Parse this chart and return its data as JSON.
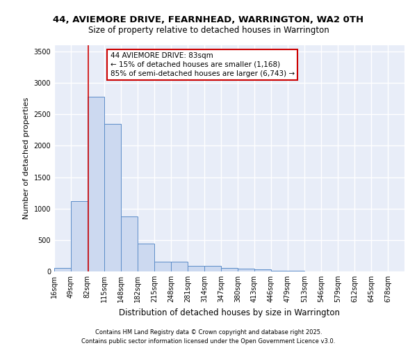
{
  "title1": "44, AVIEMORE DRIVE, FEARNHEAD, WARRINGTON, WA2 0TH",
  "title2": "Size of property relative to detached houses in Warrington",
  "xlabel": "Distribution of detached houses by size in Warrington",
  "ylabel": "Number of detached properties",
  "bar_heights": [
    50,
    1120,
    2780,
    2350,
    880,
    440,
    160,
    160,
    90,
    90,
    55,
    40,
    30,
    15,
    10,
    5,
    5,
    3,
    3,
    2,
    2
  ],
  "bin_edges": [
    16,
    49,
    82,
    115,
    148,
    182,
    215,
    248,
    281,
    314,
    347,
    380,
    413,
    446,
    479,
    513,
    546,
    579,
    612,
    645,
    678,
    711
  ],
  "tick_labels": [
    "16sqm",
    "49sqm",
    "82sqm",
    "115sqm",
    "148sqm",
    "182sqm",
    "215sqm",
    "248sqm",
    "281sqm",
    "314sqm",
    "347sqm",
    "380sqm",
    "413sqm",
    "446sqm",
    "479sqm",
    "513sqm",
    "546sqm",
    "579sqm",
    "612sqm",
    "645sqm",
    "678sqm"
  ],
  "bar_facecolor": "#ccd9f0",
  "bar_edgecolor": "#5b8cc8",
  "bg_color": "#e8edf8",
  "grid_color": "#ffffff",
  "redline_x": 83,
  "annotation_line1": "44 AVIEMORE DRIVE: 83sqm",
  "annotation_line2": "← 15% of detached houses are smaller (1,168)",
  "annotation_line3": "85% of semi-detached houses are larger (6,743) →",
  "annotation_box_color": "#cc0000",
  "redline_color": "#cc0000",
  "ylim": [
    0,
    3600
  ],
  "yticks": [
    0,
    500,
    1000,
    1500,
    2000,
    2500,
    3000,
    3500
  ],
  "footer1": "Contains HM Land Registry data © Crown copyright and database right 2025.",
  "footer2": "Contains public sector information licensed under the Open Government Licence v3.0.",
  "title1_fontsize": 9.5,
  "title2_fontsize": 8.5,
  "xlabel_fontsize": 8.5,
  "ylabel_fontsize": 8,
  "tick_fontsize": 7,
  "annot_fontsize": 7.5,
  "footer_fontsize": 6
}
